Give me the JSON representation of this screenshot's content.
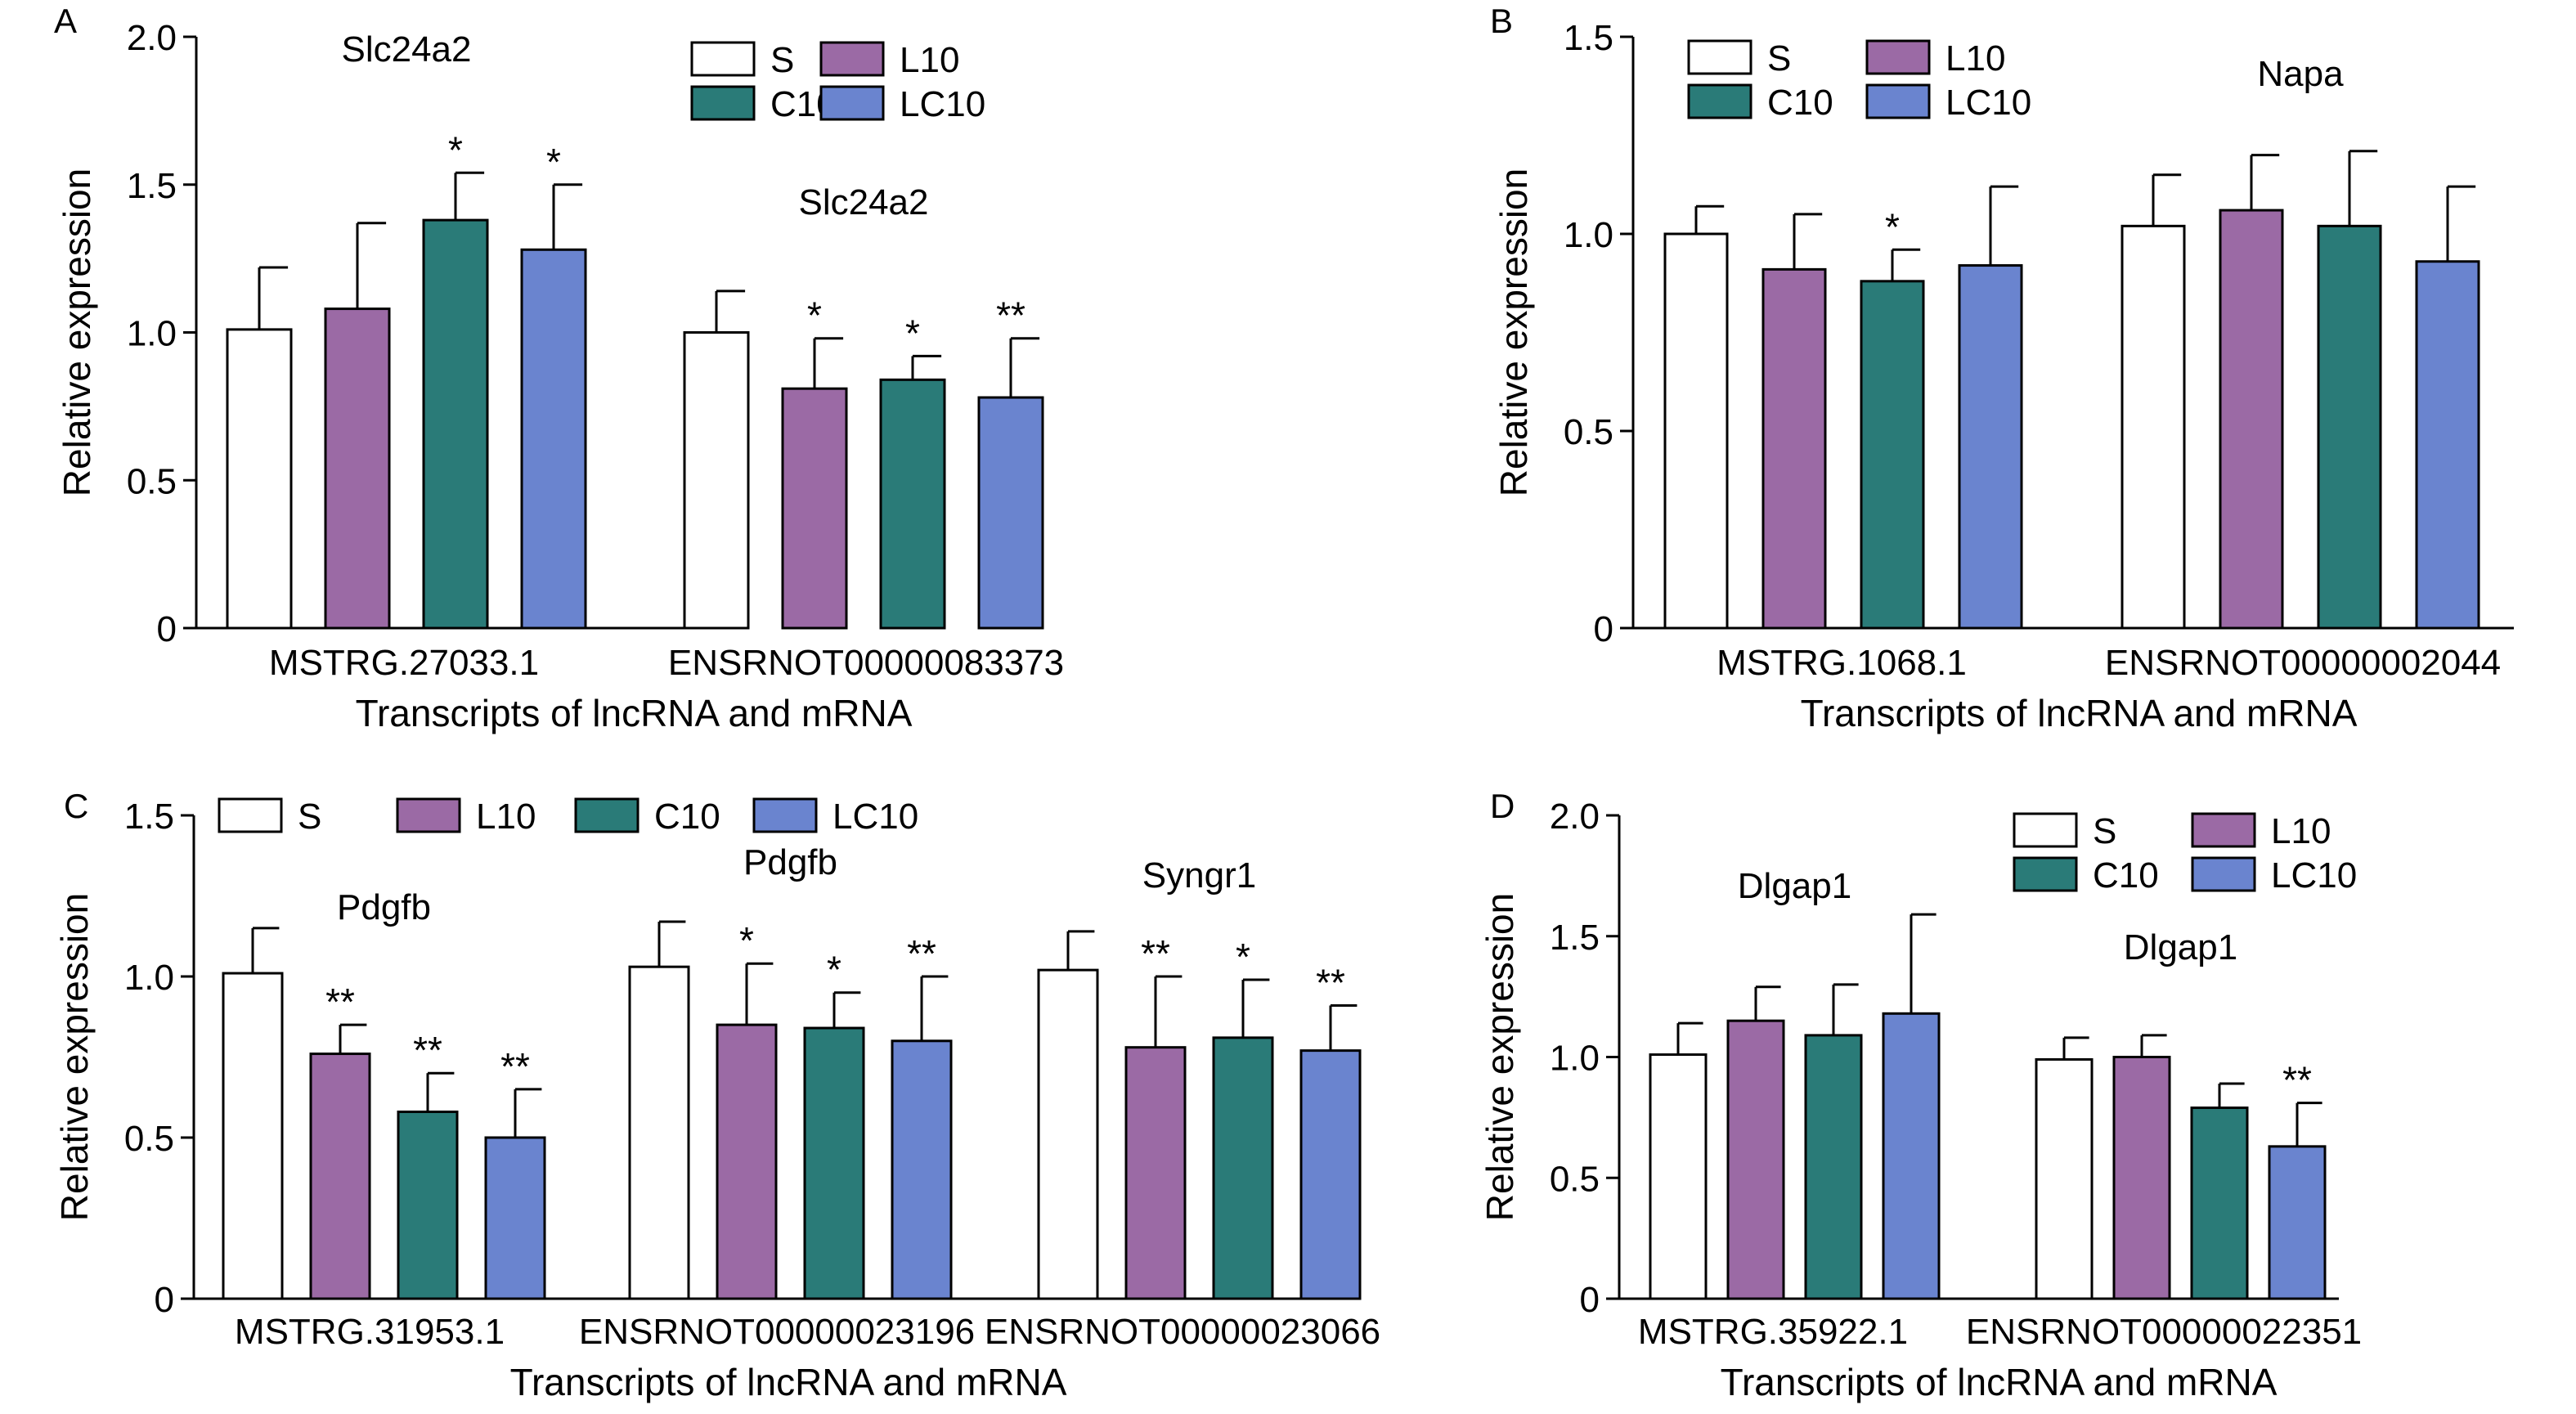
{
  "figure": {
    "colors": {
      "S": "#ffffff",
      "L10": "#9b6aa5",
      "C10": "#2a7b78",
      "LC10": "#6a84cf",
      "axis": "#000000"
    }
  },
  "chart_data": [
    {
      "id": "A",
      "type": "bar",
      "panel_label": "A",
      "xlabel": "Transcripts of lncRNA and mRNA",
      "ylabel": "Relative expression",
      "ylim": [
        0,
        2.0
      ],
      "yticks": [
        "0",
        "0.5",
        "1.0",
        "1.5",
        "2.0"
      ],
      "ytick_values": [
        0,
        0.5,
        1.0,
        1.5,
        2.0
      ],
      "legend": [
        "S",
        "L10",
        "C10",
        "LC10"
      ],
      "legend_layout": "2x2",
      "legend_position": "top-right",
      "groups": [
        {
          "label": "MSTRG.27033.1",
          "gene": "Slc24a2",
          "values": [
            1.01,
            1.08,
            1.38,
            1.28
          ],
          "errors": [
            0.21,
            0.29,
            0.16,
            0.22
          ],
          "sig": [
            "",
            "",
            "*",
            "*"
          ]
        },
        {
          "label": "ENSRNOT00000083373",
          "gene": "Slc24a2",
          "values": [
            1.0,
            0.81,
            0.84,
            0.78
          ],
          "errors": [
            0.14,
            0.17,
            0.08,
            0.2
          ],
          "sig": [
            "",
            "*",
            "*",
            "**"
          ]
        }
      ]
    },
    {
      "id": "B",
      "type": "bar",
      "panel_label": "B",
      "xlabel": "Transcripts of lncRNA and mRNA",
      "ylabel": "Relative expression",
      "ylim": [
        0,
        1.5
      ],
      "yticks": [
        "0",
        "0.5",
        "1.0",
        "1.5"
      ],
      "ytick_values": [
        0,
        0.5,
        1.0,
        1.5
      ],
      "legend": [
        "S",
        "L10",
        "C10",
        "LC10"
      ],
      "legend_layout": "2x2",
      "legend_position": "top-left",
      "groups": [
        {
          "label": "MSTRG.1068.1",
          "gene": "",
          "values": [
            1.0,
            0.91,
            0.88,
            0.92
          ],
          "errors": [
            0.07,
            0.14,
            0.08,
            0.2
          ],
          "sig": [
            "",
            "",
            "*",
            ""
          ]
        },
        {
          "label": "ENSRNOT00000002044",
          "gene": "Napa",
          "values": [
            1.02,
            1.06,
            1.02,
            0.93
          ],
          "errors": [
            0.13,
            0.14,
            0.19,
            0.19
          ],
          "sig": [
            "",
            "",
            "",
            ""
          ]
        }
      ]
    },
    {
      "id": "C",
      "type": "bar",
      "panel_label": "C",
      "xlabel": "Transcripts of lncRNA and mRNA",
      "ylabel": "Relative expression",
      "ylim": [
        0,
        1.5
      ],
      "yticks": [
        "0",
        "0.5",
        "1.0",
        "1.5"
      ],
      "ytick_values": [
        0,
        0.5,
        1.0,
        1.5
      ],
      "legend": [
        "S",
        "L10",
        "C10",
        "LC10"
      ],
      "legend_layout": "1x4",
      "legend_position": "top",
      "groups": [
        {
          "label": "MSTRG.31953.1",
          "gene": "Pdgfb",
          "values": [
            1.01,
            0.76,
            0.58,
            0.5
          ],
          "errors": [
            0.14,
            0.09,
            0.12,
            0.15
          ],
          "sig": [
            "",
            "**",
            "**",
            "**"
          ]
        },
        {
          "label": "ENSRNOT00000023196",
          "gene": "Pdgfb",
          "values": [
            1.03,
            0.85,
            0.84,
            0.8
          ],
          "errors": [
            0.14,
            0.19,
            0.11,
            0.2
          ],
          "sig": [
            "",
            "*",
            "*",
            "**"
          ]
        },
        {
          "label": "ENSRNOT00000023066",
          "gene": "Syngr1",
          "values": [
            1.02,
            0.78,
            0.81,
            0.77
          ],
          "errors": [
            0.12,
            0.22,
            0.18,
            0.14
          ],
          "sig": [
            "",
            "**",
            "*",
            "**"
          ]
        }
      ]
    },
    {
      "id": "D",
      "type": "bar",
      "panel_label": "D",
      "xlabel": "Transcripts of lncRNA and mRNA",
      "ylabel": "Relative expression",
      "ylim": [
        0,
        2.0
      ],
      "yticks": [
        "0",
        "0.5",
        "1.0",
        "1.5",
        "2.0"
      ],
      "ytick_values": [
        0,
        0.5,
        1.0,
        1.5,
        2.0
      ],
      "legend": [
        "S",
        "L10",
        "C10",
        "LC10"
      ],
      "legend_layout": "2x2",
      "legend_position": "top-right",
      "groups": [
        {
          "label": "MSTRG.35922.1",
          "gene": "Dlgap1",
          "values": [
            1.01,
            1.15,
            1.09,
            1.18
          ],
          "errors": [
            0.13,
            0.14,
            0.21,
            0.41
          ],
          "sig": [
            "",
            "",
            "",
            ""
          ]
        },
        {
          "label": "ENSRNOT00000022351",
          "gene": "Dlgap1",
          "values": [
            0.99,
            1.0,
            0.79,
            0.63
          ],
          "errors": [
            0.09,
            0.09,
            0.1,
            0.18
          ],
          "sig": [
            "",
            "",
            "",
            "**"
          ]
        }
      ]
    }
  ]
}
